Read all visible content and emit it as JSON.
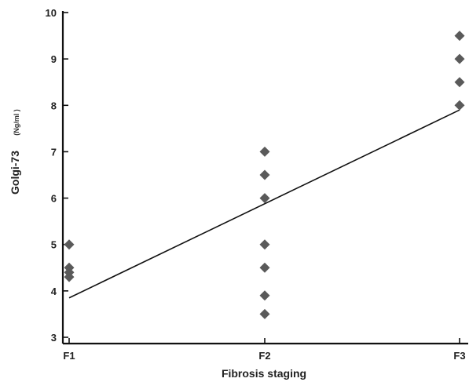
{
  "chart_data": {
    "type": "scatter",
    "title": "",
    "xlabel": "Fibrosis staging",
    "ylabel": "Golgi-73",
    "ylabel_unit": "(Ng/ml )",
    "categories": [
      "F1",
      "F2",
      "F3"
    ],
    "ylim": [
      3,
      10
    ],
    "yticks": [
      "3",
      "4",
      "5",
      "6",
      "7",
      "8",
      "9",
      "10"
    ],
    "grid": false,
    "series": [
      {
        "color": "#5a5a5a",
        "points": [
          {
            "x": "F1",
            "y": 5.0
          },
          {
            "x": "F1",
            "y": 4.5
          },
          {
            "x": "F1",
            "y": 4.4
          },
          {
            "x": "F1",
            "y": 4.3
          },
          {
            "x": "F2",
            "y": 7.0
          },
          {
            "x": "F2",
            "y": 6.5
          },
          {
            "x": "F2",
            "y": 6.0
          },
          {
            "x": "F2",
            "y": 5.0
          },
          {
            "x": "F2",
            "y": 4.5
          },
          {
            "x": "F2",
            "y": 3.9
          },
          {
            "x": "F2",
            "y": 3.5
          },
          {
            "x": "F3",
            "y": 9.5
          },
          {
            "x": "F3",
            "y": 9.0
          },
          {
            "x": "F3",
            "y": 8.5
          },
          {
            "x": "F3",
            "y": 8.0
          }
        ]
      }
    ],
    "trendline": {
      "from": {
        "x": "F1",
        "y": 3.85
      },
      "to": {
        "x": "F3",
        "y": 7.9
      },
      "color": "#111111"
    }
  }
}
